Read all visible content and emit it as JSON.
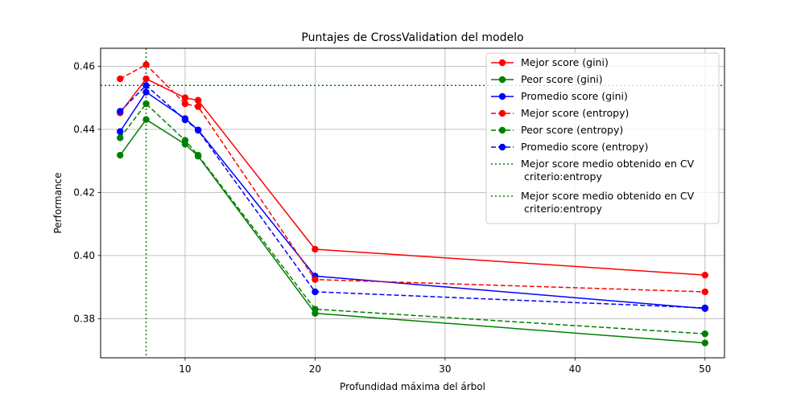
{
  "chart_data": {
    "type": "line",
    "title": "Puntajes de CrossValidation del modelo",
    "xlabel": "Profundidad máxima del árbol",
    "ylabel": "Performance",
    "xlim": [
      3.5,
      51.5
    ],
    "ylim": [
      0.3676,
      0.4657
    ],
    "xticks": [
      10,
      20,
      30,
      40,
      50
    ],
    "yticks": [
      0.38,
      0.4,
      0.42,
      0.44,
      0.46
    ],
    "xtick_labels": [
      "10",
      "20",
      "30",
      "40",
      "50"
    ],
    "ytick_labels": [
      "0.38",
      "0.40",
      "0.42",
      "0.44",
      "0.46"
    ],
    "grid": true,
    "legend_position": "top-right",
    "x": [
      5,
      7,
      10,
      11,
      20,
      50
    ],
    "series": [
      {
        "name": "Mejor score (gini)",
        "color": "#ff0000",
        "style": "solid",
        "values": [
          0.4452,
          0.456,
          0.45,
          0.4492,
          0.402,
          0.3938
        ]
      },
      {
        "name": "Peor score (gini)",
        "color": "#008000",
        "style": "solid",
        "values": [
          0.4318,
          0.4431,
          0.4353,
          0.4315,
          0.3817,
          0.3723
        ]
      },
      {
        "name": "Promedio score (gini)",
        "color": "#0000ff",
        "style": "solid",
        "values": [
          0.4393,
          0.4518,
          0.4434,
          0.4398,
          0.3935,
          0.3832
        ]
      },
      {
        "name": "Mejor score (entropy)",
        "color": "#ff0000",
        "style": "dashed",
        "values": [
          0.456,
          0.4605,
          0.4481,
          0.4472,
          0.3924,
          0.3885
        ]
      },
      {
        "name": "Peor score (entropy)",
        "color": "#008000",
        "style": "dashed",
        "values": [
          0.4373,
          0.4481,
          0.4365,
          0.4318,
          0.383,
          0.3752
        ]
      },
      {
        "name": "Promedio score (entropy)",
        "color": "#0000ff",
        "style": "dashed",
        "values": [
          0.4457,
          0.4539,
          0.443,
          0.4397,
          0.3885,
          0.3834
        ]
      }
    ],
    "reference_lines": [
      {
        "label": "Mejor score medio obtenido en CV\n criterio:entropy",
        "orientation": "vertical",
        "x": 7,
        "color": "#008000",
        "style": "dotted"
      },
      {
        "label": "Mejor score medio obtenido en CV\n criterio:entropy",
        "orientation": "horizontal",
        "y": 0.4539,
        "color": "#008000",
        "style": "dotted"
      }
    ]
  }
}
